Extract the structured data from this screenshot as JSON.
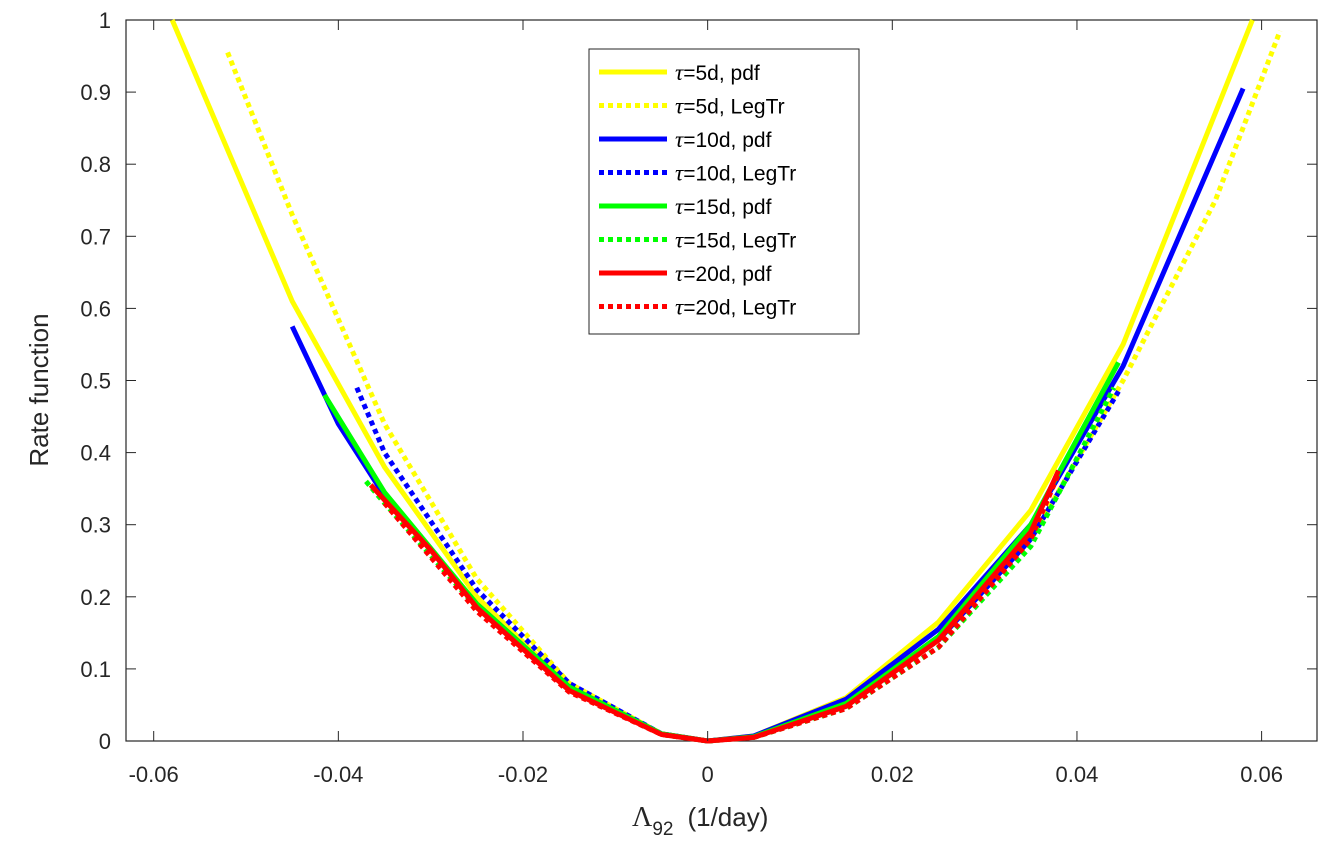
{
  "chart_data": {
    "type": "line",
    "title": "",
    "xlabel_symbol": "Λ",
    "xlabel_subscript": "92",
    "xlabel_unit": "(1/day)",
    "ylabel": "Rate function",
    "xlim": [
      -0.063,
      0.066
    ],
    "ylim": [
      0,
      1
    ],
    "xticks": [
      -0.06,
      -0.04,
      -0.02,
      0,
      0.02,
      0.04,
      0.06
    ],
    "xtick_labels": [
      "-0.06",
      "-0.04",
      "-0.02",
      "0",
      "0.02",
      "0.04",
      "0.06"
    ],
    "yticks": [
      0,
      0.1,
      0.2,
      0.3,
      0.4,
      0.5,
      0.6,
      0.7,
      0.8,
      0.9,
      1
    ],
    "ytick_labels": [
      "0",
      "0.1",
      "0.2",
      "0.3",
      "0.4",
      "0.5",
      "0.6",
      "0.7",
      "0.8",
      "0.9",
      "1"
    ],
    "grid": false,
    "legend_position": "top-center",
    "series": [
      {
        "name": "τ=5d, pdf",
        "tau": "τ",
        "label_rest": "=5d, pdf",
        "color": "#ffff00",
        "dashed": false,
        "x": [
          -0.058,
          -0.045,
          -0.035,
          -0.025,
          -0.015,
          -0.005,
          0,
          0.005,
          0.015,
          0.025,
          0.035,
          0.045,
          0.059
        ],
        "y": [
          1.0,
          0.61,
          0.38,
          0.2,
          0.075,
          0.01,
          0.0,
          0.007,
          0.06,
          0.165,
          0.32,
          0.55,
          1.0
        ]
      },
      {
        "name": "τ=5d, LegTr",
        "tau": "τ",
        "label_rest": "=5d, LegTr",
        "color": "#ffff00",
        "dashed": true,
        "x": [
          -0.052,
          -0.045,
          -0.035,
          -0.025,
          -0.015,
          -0.005,
          0,
          0.005,
          0.015,
          0.025,
          0.035,
          0.045,
          0.055,
          0.062
        ],
        "y": [
          0.955,
          0.73,
          0.44,
          0.225,
          0.08,
          0.01,
          0.0,
          0.006,
          0.05,
          0.14,
          0.28,
          0.5,
          0.75,
          0.985
        ]
      },
      {
        "name": "τ=10d, pdf",
        "tau": "τ",
        "label_rest": "=10d, pdf",
        "color": "#0000ff",
        "dashed": false,
        "x": [
          -0.045,
          -0.04,
          -0.035,
          -0.025,
          -0.015,
          -0.005,
          0,
          0.005,
          0.015,
          0.025,
          0.035,
          0.045,
          0.058
        ],
        "y": [
          0.575,
          0.44,
          0.34,
          0.19,
          0.075,
          0.01,
          0.0,
          0.007,
          0.058,
          0.155,
          0.3,
          0.52,
          0.905
        ]
      },
      {
        "name": "τ=10d, LegTr",
        "tau": "τ",
        "label_rest": "=10d, LegTr",
        "color": "#0000ff",
        "dashed": true,
        "x": [
          -0.038,
          -0.035,
          -0.025,
          -0.015,
          -0.005,
          0,
          0.005,
          0.015,
          0.025,
          0.035,
          0.0445
        ],
        "y": [
          0.49,
          0.4,
          0.21,
          0.08,
          0.01,
          0.0,
          0.006,
          0.05,
          0.14,
          0.28,
          0.485
        ]
      },
      {
        "name": "τ=15d, pdf",
        "tau": "τ",
        "label_rest": "=15d, pdf",
        "color": "#00ff00",
        "dashed": false,
        "x": [
          -0.0415,
          -0.035,
          -0.025,
          -0.015,
          -0.005,
          0,
          0.005,
          0.015,
          0.025,
          0.035,
          0.0445
        ],
        "y": [
          0.48,
          0.345,
          0.19,
          0.075,
          0.01,
          0.0,
          0.006,
          0.052,
          0.145,
          0.3,
          0.525
        ]
      },
      {
        "name": "τ=15d, LegTr",
        "tau": "τ",
        "label_rest": "=15d, LegTr",
        "color": "#00ff00",
        "dashed": true,
        "x": [
          -0.037,
          -0.035,
          -0.025,
          -0.015,
          -0.005,
          0,
          0.005,
          0.015,
          0.025,
          0.035,
          0.044
        ],
        "y": [
          0.36,
          0.33,
          0.185,
          0.072,
          0.009,
          0.0,
          0.005,
          0.045,
          0.13,
          0.27,
          0.49
        ]
      },
      {
        "name": "τ=20d, pdf",
        "tau": "τ",
        "label_rest": "=20d, pdf",
        "color": "#ff0000",
        "dashed": false,
        "x": [
          -0.0365,
          -0.03,
          -0.025,
          -0.015,
          -0.005,
          0,
          0.005,
          0.015,
          0.025,
          0.035,
          0.038
        ],
        "y": [
          0.355,
          0.265,
          0.185,
          0.07,
          0.009,
          0.0,
          0.005,
          0.048,
          0.14,
          0.29,
          0.375
        ]
      },
      {
        "name": "τ=20d, LegTr",
        "tau": "τ",
        "label_rest": "=20d, LegTr",
        "color": "#ff0000",
        "dashed": true,
        "x": [
          -0.035,
          -0.03,
          -0.025,
          -0.015,
          -0.005,
          0,
          0.005,
          0.015,
          0.025,
          0.035,
          0.038
        ],
        "y": [
          0.33,
          0.255,
          0.18,
          0.068,
          0.009,
          0.0,
          0.005,
          0.045,
          0.13,
          0.28,
          0.37
        ]
      }
    ]
  }
}
